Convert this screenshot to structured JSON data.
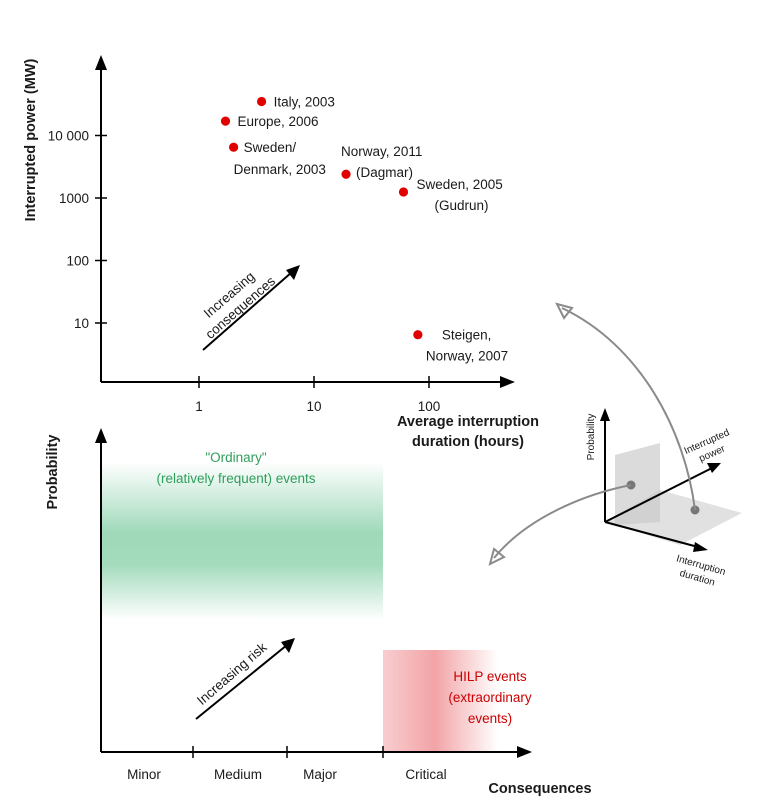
{
  "chart_data": [
    {
      "type": "scatter",
      "xlabel_lines": [
        "Average interruption",
        "duration (hours)"
      ],
      "ylabel": "Interrupted power (MW)",
      "xscale": "log",
      "yscale": "log",
      "x_ticks": [
        {
          "value": 1,
          "label": "1"
        },
        {
          "value": 10,
          "label": "10"
        },
        {
          "value": 100,
          "label": "100"
        }
      ],
      "y_ticks": [
        {
          "value": 10,
          "label": "10"
        },
        {
          "value": 100,
          "label": "100"
        },
        {
          "value": 1000,
          "label": "1000"
        },
        {
          "value": 10000,
          "label": "10 000"
        }
      ],
      "points": [
        {
          "name": "italy-2003",
          "label_lines": [
            "Italy, 2003"
          ],
          "x": 3.5,
          "y": 35000
        },
        {
          "name": "europe-2006",
          "label_lines": [
            "Europe, 2006"
          ],
          "x": 1.7,
          "y": 17000
        },
        {
          "name": "sweden-denmark-2003",
          "label_lines": [
            "Sweden/",
            "Denmark, 2003"
          ],
          "x": 2.0,
          "y": 6500
        },
        {
          "name": "norway-2011",
          "label_lines": [
            "Norway, 2011",
            "(Dagmar)"
          ],
          "x": 19,
          "y": 2400
        },
        {
          "name": "sweden-2005",
          "label_lines": [
            "Sweden, 2005",
            "(Gudrun)"
          ],
          "x": 60,
          "y": 1250
        },
        {
          "name": "steigen-2007",
          "label_lines": [
            "Steigen,",
            "Norway, 2007"
          ],
          "x": 80,
          "y": 6.5
        }
      ],
      "point_color": "#e00000",
      "annotation_lines": [
        "Increasing",
        "consequences"
      ]
    },
    {
      "type": "area",
      "ylabel": "Probability",
      "xlabel": "Consequences",
      "categories": [
        "Minor",
        "Medium",
        "Major",
        "Critical"
      ],
      "regions": [
        {
          "name": "ordinary-events",
          "label_lines": [
            "\"Ordinary\"",
            "(relatively frequent) events"
          ],
          "color": "#2e9e5b",
          "category_span": [
            "Minor",
            "Major"
          ]
        },
        {
          "name": "hilp-events",
          "label_lines": [
            "HILP events",
            "(extraordinary",
            "events)"
          ],
          "color": "#cc0000",
          "category_span": [
            "Critical",
            "Critical"
          ]
        }
      ],
      "annotation": "Increasing risk"
    },
    {
      "type": "diagram",
      "axes": [
        "Probability",
        "Interrupted power",
        "Interruption duration"
      ],
      "axis_label_lines": {
        "probability": [
          "Probability"
        ],
        "power": [
          "Interrupted",
          "power"
        ],
        "duration": [
          "Interruption",
          "duration"
        ]
      }
    }
  ]
}
